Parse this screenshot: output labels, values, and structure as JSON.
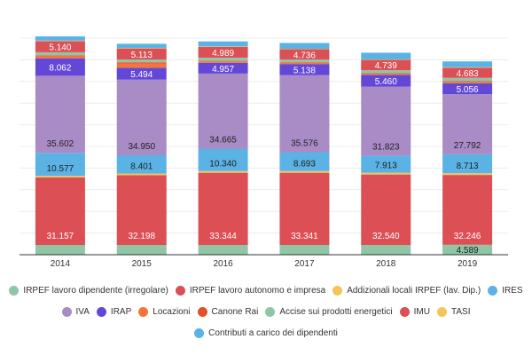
{
  "chart_data": {
    "type": "bar",
    "stacked": true,
    "title": "",
    "xlabel": "",
    "ylabel": "",
    "ylim": [
      0,
      100000
    ],
    "grid": true,
    "legend_position": "bottom",
    "categories": [
      "2014",
      "2015",
      "2016",
      "2017",
      "2018",
      "2019"
    ],
    "series": [
      {
        "name": "IRPEF lavoro dipendente (irregolare)",
        "color": "#8fc6a6",
        "values": [
          4500,
          4500,
          4500,
          4500,
          4500,
          4589
        ],
        "labels": [
          "",
          "",
          "",
          "",
          "",
          "4.589"
        ],
        "label_color": "#222"
      },
      {
        "name": "IRPEF lavoro autonomo e impresa",
        "color": "#dc4f55",
        "values": [
          31157,
          32198,
          33344,
          33341,
          32540,
          32246
        ],
        "labels": [
          "31.157",
          "32.198",
          "33.344",
          "33.341",
          "32.540",
          "32.246"
        ],
        "label_color": "#fff"
      },
      {
        "name": "Addizionali locali IRPEF (lav. Dip.)",
        "color": "#f2c45a",
        "values": [
          800,
          800,
          800,
          800,
          800,
          800
        ],
        "labels": [
          "",
          "",
          "",
          "",
          "",
          ""
        ]
      },
      {
        "name": "IRES",
        "color": "#5ab3e4",
        "values": [
          10577,
          8401,
          10340,
          8693,
          7913,
          8713
        ],
        "labels": [
          "10.577",
          "8.401",
          "10.340",
          "8.693",
          "7.913",
          "8.713"
        ],
        "label_color": "#222"
      },
      {
        "name": "IVA",
        "color": "#a98bc6",
        "values": [
          35602,
          34950,
          34665,
          35576,
          31823,
          27792
        ],
        "labels": [
          "35.602",
          "34.950",
          "34.665",
          "35.576",
          "31.823",
          "27.792"
        ],
        "label_color": "#222"
      },
      {
        "name": "IRAP",
        "color": "#6348d8",
        "values": [
          8062,
          5494,
          4957,
          5138,
          5460,
          5056
        ],
        "labels": [
          "8.062",
          "5.494",
          "4.957",
          "5.138",
          "5.460",
          "5.056"
        ],
        "label_color": "#fff"
      },
      {
        "name": "Locazioni",
        "color": "#f7733a",
        "values": [
          1300,
          2000,
          600,
          500,
          500,
          700
        ],
        "labels": [
          "",
          "",
          "",
          "",
          "",
          ""
        ]
      },
      {
        "name": "Canone Rai",
        "color": "#e0502a",
        "values": [
          100,
          500,
          300,
          300,
          300,
          300
        ],
        "labels": [
          "",
          "",
          "",
          "",
          "",
          ""
        ]
      },
      {
        "name": "Accise sui prodotti energetici",
        "color": "#8fc6a6",
        "values": [
          1400,
          1300,
          1500,
          1300,
          1400,
          1500
        ],
        "labels": [
          "",
          "",
          "",
          "",
          "",
          ""
        ]
      },
      {
        "name": "IMU",
        "color": "#dc4f55",
        "values": [
          5140,
          5113,
          4989,
          4736,
          4739,
          4683
        ],
        "labels": [
          "5.140",
          "5.113",
          "4.989",
          "4.736",
          "4.739",
          "4.683"
        ],
        "label_color": "#fff"
      },
      {
        "name": "TASI",
        "color": "#f2c45a",
        "values": [
          200,
          250,
          200,
          200,
          200,
          200
        ],
        "labels": [
          "",
          "",
          "",
          "",
          "",
          ""
        ]
      },
      {
        "name": "Contributi a carico dei dipendenti",
        "color": "#5ab3e4",
        "values": [
          2000,
          1900,
          2300,
          2700,
          3100,
          2700
        ],
        "labels": [
          "",
          "",
          "",
          "",
          "",
          ""
        ]
      }
    ]
  }
}
